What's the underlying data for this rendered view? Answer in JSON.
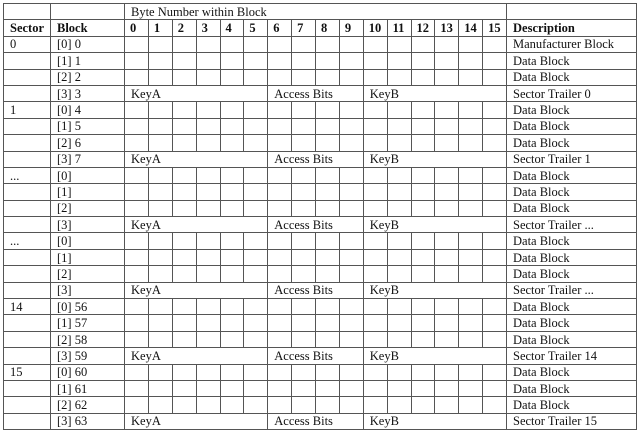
{
  "header": {
    "group_label": "Byte Number within Block",
    "sector": "Sector",
    "block": "Block",
    "bytes": [
      "0",
      "1",
      "2",
      "3",
      "4",
      "5",
      "6",
      "7",
      "8",
      "9",
      "10",
      "11",
      "12",
      "13",
      "14",
      "15"
    ],
    "description": "Description"
  },
  "trailer_labels": {
    "key_a": "KeyA",
    "access_bits": "Access Bits",
    "key_b": "KeyB"
  },
  "rows": [
    {
      "sector": "0",
      "block": "[0] 0",
      "description": "Manufacturer Block",
      "trailer": false
    },
    {
      "sector": "",
      "block": "[1] 1",
      "description": "Data Block",
      "trailer": false
    },
    {
      "sector": "",
      "block": "[2] 2",
      "description": "Data Block",
      "trailer": false
    },
    {
      "sector": "",
      "block": "[3] 3",
      "description": "Sector Trailer 0",
      "trailer": true
    },
    {
      "sector": "1",
      "block": "[0] 4",
      "description": "Data Block",
      "trailer": false
    },
    {
      "sector": "",
      "block": "[1] 5",
      "description": "Data Block",
      "trailer": false
    },
    {
      "sector": "",
      "block": "[2] 6",
      "description": "Data Block",
      "trailer": false
    },
    {
      "sector": "",
      "block": "[3] 7",
      "description": "Sector Trailer 1",
      "trailer": true
    },
    {
      "sector": "...",
      "block": "[0]",
      "description": "Data Block",
      "trailer": false
    },
    {
      "sector": "",
      "block": "[1]",
      "description": "Data Block",
      "trailer": false
    },
    {
      "sector": "",
      "block": "[2]",
      "description": "Data Block",
      "trailer": false
    },
    {
      "sector": "",
      "block": "[3]",
      "description": "Sector Trailer ...",
      "trailer": true
    },
    {
      "sector": "...",
      "block": "[0]",
      "description": "Data Block",
      "trailer": false
    },
    {
      "sector": "",
      "block": "[1]",
      "description": "Data Block",
      "trailer": false
    },
    {
      "sector": "",
      "block": "[2]",
      "description": "Data Block",
      "trailer": false
    },
    {
      "sector": "",
      "block": "[3]",
      "description": "Sector Trailer ...",
      "trailer": true
    },
    {
      "sector": "14",
      "block": "[0] 56",
      "description": "Data Block",
      "trailer": false
    },
    {
      "sector": "",
      "block": "[1] 57",
      "description": "Data Block",
      "trailer": false
    },
    {
      "sector": "",
      "block": "[2] 58",
      "description": "Data Block",
      "trailer": false
    },
    {
      "sector": "",
      "block": "[3] 59",
      "description": "Sector Trailer 14",
      "trailer": true
    },
    {
      "sector": "15",
      "block": "[0] 60",
      "description": "Data Block",
      "trailer": false
    },
    {
      "sector": "",
      "block": "[1] 61",
      "description": "Data Block",
      "trailer": false
    },
    {
      "sector": "",
      "block": "[2] 62",
      "description": "Data Block",
      "trailer": false
    },
    {
      "sector": "",
      "block": "[3] 63",
      "description": "Sector Trailer 15",
      "trailer": true
    }
  ]
}
